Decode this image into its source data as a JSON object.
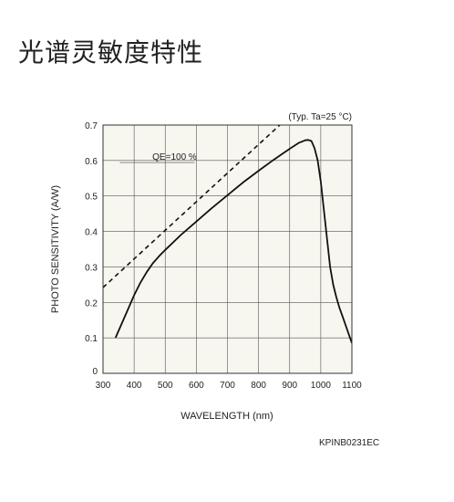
{
  "page": {
    "title": "光谱灵敏度特性",
    "figure_code": "KPINB0231EC"
  },
  "chart_data": {
    "type": "line",
    "title": "",
    "xlabel": "WAVELENGTH (nm)",
    "ylabel": "PHOTO SENSITIVITY (A/W)",
    "xlim": [
      300,
      1100
    ],
    "ylim": [
      0,
      0.7
    ],
    "x_ticks": [
      300,
      400,
      500,
      600,
      700,
      800,
      900,
      1000,
      1100
    ],
    "y_ticks": [
      0,
      0.1,
      0.2,
      0.3,
      0.4,
      0.5,
      0.6,
      0.7
    ],
    "x_tick_labels": [
      "300",
      "400",
      "500",
      "600",
      "700",
      "800",
      "900",
      "1000",
      "1100"
    ],
    "y_tick_labels": [
      "0",
      "0.1",
      "0.2",
      "0.3",
      "0.4",
      "0.5",
      "0.6",
      "0.7"
    ],
    "grid": true,
    "plot_background": "#f7f7f0",
    "condition_note": "(Typ. Ta=25 °C)",
    "series": [
      {
        "style": "solid",
        "color": "#111111",
        "x": [
          340,
          360,
          380,
          400,
          420,
          440,
          460,
          480,
          500,
          550,
          600,
          650,
          700,
          750,
          800,
          850,
          900,
          930,
          950,
          960,
          970,
          980,
          990,
          1000,
          1010,
          1020,
          1030,
          1040,
          1050,
          1060,
          1070,
          1080,
          1090,
          1100
        ],
        "y": [
          0.1,
          0.14,
          0.18,
          0.22,
          0.255,
          0.285,
          0.31,
          0.33,
          0.348,
          0.39,
          0.428,
          0.466,
          0.502,
          0.538,
          0.571,
          0.603,
          0.633,
          0.65,
          0.657,
          0.658,
          0.655,
          0.635,
          0.6,
          0.54,
          0.46,
          0.38,
          0.3,
          0.25,
          0.215,
          0.185,
          0.16,
          0.135,
          0.11,
          0.085
        ]
      },
      {
        "name": "QE=100 %",
        "style": "dashed",
        "color": "#111111",
        "x": [
          300,
          980
        ],
        "y": [
          0.242,
          0.79
        ]
      }
    ],
    "annotations": [
      {
        "text": "QE=100 %",
        "x": 530,
        "y": 0.602
      }
    ]
  }
}
